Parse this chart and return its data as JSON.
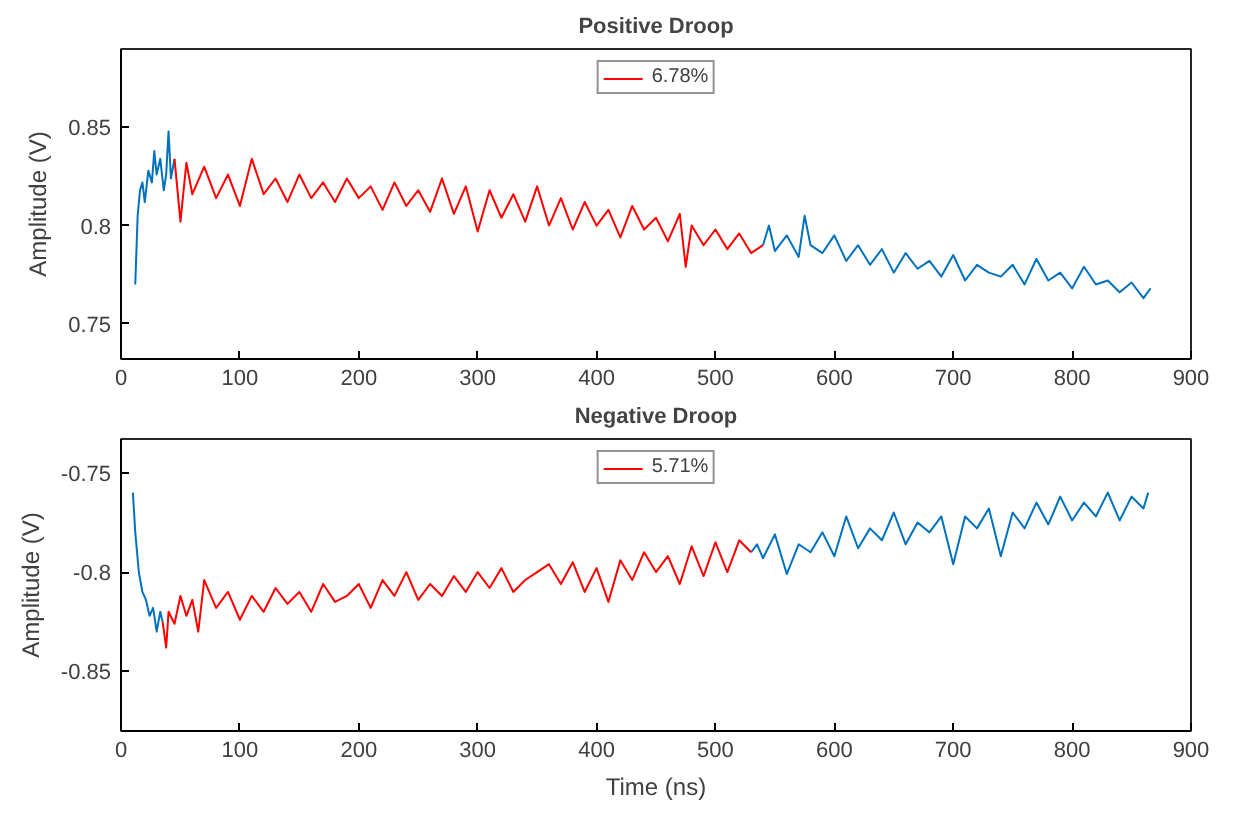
{
  "chart_data": [
    {
      "type": "line",
      "title": "Positive Droop",
      "ylabel": "Amplitude (V)",
      "xlim": [
        0,
        900
      ],
      "xticks": [
        0,
        100,
        200,
        300,
        400,
        500,
        600,
        700,
        800,
        900
      ],
      "ylim": [
        0.732,
        0.89
      ],
      "yticks": [
        0.75,
        0.8,
        0.85
      ],
      "grid": false,
      "legend": "top",
      "series": [
        {
          "color": "#0072bd",
          "x": [
            12,
            14,
            16,
            18,
            20,
            23,
            26,
            28,
            30,
            33,
            36,
            38,
            40,
            42,
            45,
            46,
            540,
            545,
            550,
            560,
            570,
            575,
            580,
            590,
            600,
            610,
            620,
            630,
            640,
            650,
            660,
            670,
            680,
            690,
            700,
            710,
            720,
            730,
            740,
            750,
            760,
            770,
            780,
            790,
            800,
            810,
            820,
            830,
            840,
            850,
            860,
            866
          ],
          "values": [
            0.77,
            0.805,
            0.818,
            0.822,
            0.812,
            0.828,
            0.822,
            0.838,
            0.826,
            0.834,
            0.818,
            0.826,
            0.848,
            0.824,
            0.834,
            null,
            0.79,
            0.8,
            0.787,
            0.795,
            0.784,
            0.805,
            0.79,
            0.786,
            0.795,
            0.782,
            0.79,
            0.78,
            0.788,
            0.776,
            0.786,
            0.778,
            0.782,
            0.774,
            0.785,
            0.772,
            0.78,
            0.776,
            0.774,
            0.78,
            0.77,
            0.783,
            0.772,
            0.776,
            0.768,
            0.779,
            0.77,
            0.772,
            0.766,
            0.771,
            0.763,
            0.768
          ]
        },
        {
          "name": "6.78%",
          "color": "#ff0000",
          "x": [
            45,
            50,
            55,
            60,
            70,
            80,
            90,
            100,
            110,
            120,
            130,
            140,
            150,
            160,
            170,
            180,
            190,
            200,
            210,
            220,
            230,
            240,
            250,
            260,
            270,
            280,
            290,
            300,
            310,
            320,
            330,
            340,
            350,
            360,
            370,
            380,
            390,
            400,
            410,
            420,
            430,
            440,
            450,
            460,
            470,
            475,
            480,
            490,
            500,
            510,
            520,
            530,
            540
          ],
          "values": [
            0.834,
            0.802,
            0.832,
            0.816,
            0.83,
            0.814,
            0.826,
            0.81,
            0.834,
            0.816,
            0.824,
            0.812,
            0.826,
            0.814,
            0.822,
            0.812,
            0.824,
            0.814,
            0.82,
            0.808,
            0.822,
            0.81,
            0.818,
            0.807,
            0.824,
            0.806,
            0.82,
            0.797,
            0.818,
            0.804,
            0.816,
            0.802,
            0.82,
            0.8,
            0.814,
            0.798,
            0.812,
            0.8,
            0.808,
            0.794,
            0.81,
            0.798,
            0.804,
            0.792,
            0.806,
            0.779,
            0.8,
            0.79,
            0.798,
            0.788,
            0.796,
            0.786,
            0.79
          ]
        }
      ]
    },
    {
      "type": "line",
      "title": "Negative Droop",
      "xlabel": "Time (ns)",
      "ylabel": "Amplitude (V)",
      "xlim": [
        0,
        900
      ],
      "xticks": [
        0,
        100,
        200,
        300,
        400,
        500,
        600,
        700,
        800,
        900
      ],
      "ylim": [
        -0.88,
        -0.733
      ],
      "yticks": [
        -0.85,
        -0.8,
        -0.75
      ],
      "grid": false,
      "legend": "top",
      "series": [
        {
          "color": "#0072bd",
          "x": [
            10,
            12,
            15,
            18,
            21,
            24,
            27,
            30,
            33,
            35,
            36,
            530,
            535,
            540,
            550,
            560,
            570,
            580,
            590,
            600,
            610,
            620,
            630,
            640,
            650,
            660,
            670,
            680,
            690,
            700,
            710,
            720,
            730,
            740,
            750,
            760,
            770,
            780,
            790,
            800,
            810,
            820,
            830,
            840,
            850,
            860,
            864
          ],
          "values": [
            -0.76,
            -0.78,
            -0.8,
            -0.81,
            -0.814,
            -0.822,
            -0.818,
            -0.83,
            -0.82,
            -0.825,
            null,
            -0.79,
            -0.786,
            -0.793,
            -0.781,
            -0.801,
            -0.786,
            -0.79,
            -0.78,
            -0.792,
            -0.772,
            -0.788,
            -0.778,
            -0.784,
            -0.77,
            -0.786,
            -0.775,
            -0.78,
            -0.772,
            -0.796,
            -0.772,
            -0.778,
            -0.768,
            -0.792,
            -0.77,
            -0.778,
            -0.765,
            -0.776,
            -0.762,
            -0.774,
            -0.765,
            -0.772,
            -0.76,
            -0.774,
            -0.762,
            -0.768,
            -0.76
          ]
        },
        {
          "name": "5.71%",
          "color": "#ff0000",
          "x": [
            35,
            38,
            40,
            45,
            50,
            55,
            60,
            65,
            70,
            80,
            90,
            100,
            110,
            120,
            130,
            140,
            150,
            160,
            170,
            180,
            190,
            200,
            210,
            220,
            230,
            240,
            250,
            260,
            270,
            280,
            290,
            300,
            310,
            320,
            330,
            340,
            350,
            360,
            370,
            380,
            390,
            400,
            410,
            420,
            430,
            440,
            450,
            460,
            470,
            480,
            490,
            500,
            510,
            520,
            530
          ],
          "values": [
            -0.825,
            -0.838,
            -0.82,
            -0.826,
            -0.812,
            -0.822,
            -0.814,
            -0.83,
            -0.804,
            -0.818,
            -0.81,
            -0.824,
            -0.812,
            -0.82,
            -0.808,
            -0.816,
            -0.81,
            -0.82,
            -0.806,
            -0.815,
            -0.812,
            -0.806,
            -0.818,
            -0.804,
            -0.812,
            -0.8,
            -0.814,
            -0.806,
            -0.812,
            -0.802,
            -0.81,
            -0.8,
            -0.808,
            -0.798,
            -0.81,
            -0.804,
            -0.8,
            -0.796,
            -0.806,
            -0.795,
            -0.81,
            -0.798,
            -0.815,
            -0.794,
            -0.804,
            -0.79,
            -0.8,
            -0.792,
            -0.806,
            -0.787,
            -0.802,
            -0.785,
            -0.8,
            -0.784,
            -0.79
          ]
        }
      ]
    }
  ]
}
